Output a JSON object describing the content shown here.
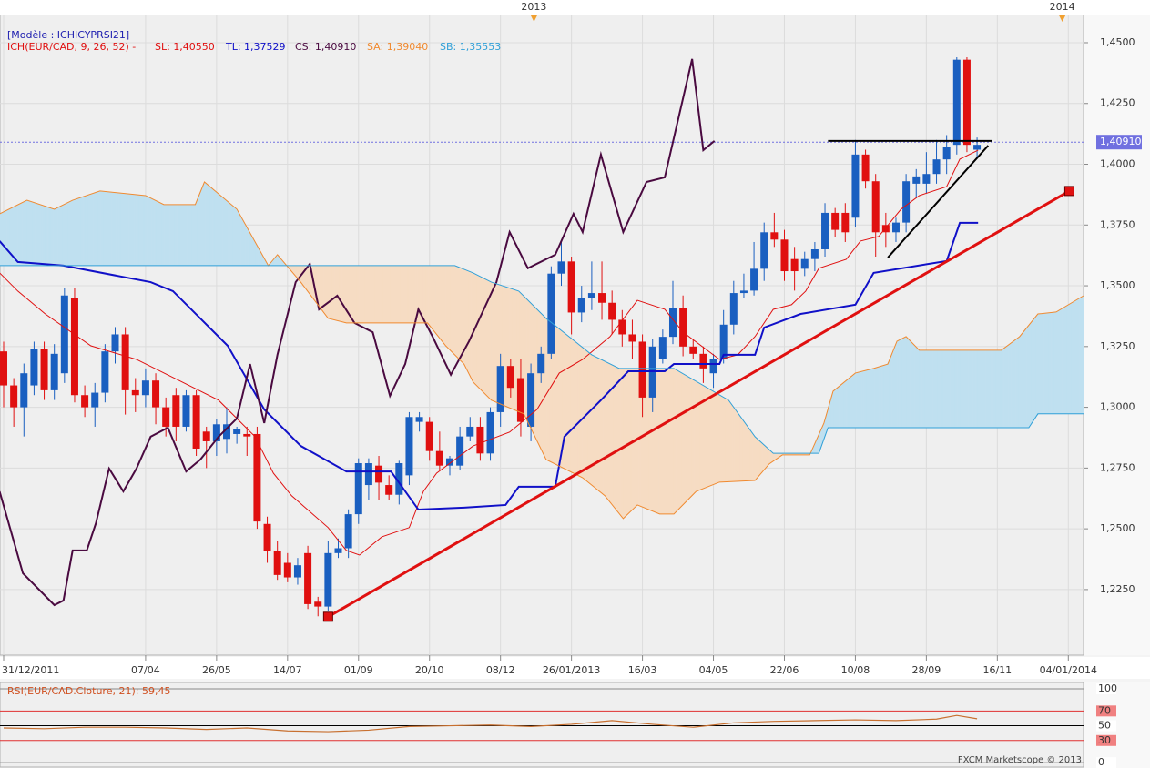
{
  "chart_data": [
    {
      "type": "candlestick",
      "model": "[Modèle : ICHICYPRSI21]",
      "indicator": "ICH(EUR/CAD, 9, 26, 52) -",
      "footer": "FXCM Marketscope © 2013",
      "up_color": "#1a5fc0",
      "down_color": "#e01010",
      "open": [
        1.323,
        1.309,
        1.3,
        1.309,
        1.324,
        1.307,
        1.314,
        1.345,
        1.305,
        1.3,
        1.306,
        1.323,
        1.33,
        1.307,
        1.305,
        1.311,
        1.3,
        1.305,
        1.292,
        1.305,
        1.29,
        1.286,
        1.287,
        1.289,
        1.289,
        1.289,
        1.252,
        1.241,
        1.236,
        1.23,
        1.24,
        1.22,
        1.218,
        1.24,
        1.242,
        1.256,
        1.268,
        1.276,
        1.268,
        1.264,
        1.272,
        1.294,
        1.294,
        1.282,
        1.276,
        1.276,
        1.288,
        1.292,
        1.281,
        1.298,
        1.317,
        1.312,
        1.292,
        1.314,
        1.322,
        1.355,
        1.36,
        1.339,
        1.345,
        1.347,
        1.343,
        1.336,
        1.33,
        1.327,
        1.304,
        1.32,
        1.329,
        1.341,
        1.325,
        1.322,
        1.314,
        1.32,
        1.334,
        1.347,
        1.348,
        1.357,
        1.372,
        1.369,
        1.361,
        1.357,
        1.361,
        1.365,
        1.38,
        1.38,
        1.378,
        1.404,
        1.393,
        1.375,
        1.372,
        1.376,
        1.392,
        1.392,
        1.396,
        1.402,
        1.408,
        1.443,
        1.406
      ],
      "high": [
        1.327,
        1.312,
        1.318,
        1.327,
        1.327,
        1.326,
        1.349,
        1.349,
        1.309,
        1.31,
        1.326,
        1.333,
        1.333,
        1.312,
        1.316,
        1.314,
        1.304,
        1.308,
        1.307,
        1.307,
        1.292,
        1.295,
        1.3,
        1.292,
        1.292,
        1.292,
        1.255,
        1.245,
        1.24,
        1.238,
        1.243,
        1.222,
        1.245,
        1.246,
        1.258,
        1.279,
        1.279,
        1.28,
        1.272,
        1.278,
        1.298,
        1.298,
        1.296,
        1.29,
        1.28,
        1.292,
        1.296,
        1.296,
        1.3,
        1.322,
        1.32,
        1.32,
        1.318,
        1.325,
        1.358,
        1.368,
        1.362,
        1.35,
        1.36,
        1.36,
        1.348,
        1.34,
        1.336,
        1.33,
        1.328,
        1.332,
        1.352,
        1.346,
        1.328,
        1.325,
        1.322,
        1.34,
        1.352,
        1.355,
        1.368,
        1.376,
        1.38,
        1.373,
        1.366,
        1.364,
        1.368,
        1.384,
        1.382,
        1.384,
        1.41,
        1.406,
        1.396,
        1.38,
        1.378,
        1.396,
        1.398,
        1.405,
        1.41,
        1.412,
        1.444,
        1.444,
        1.411
      ],
      "low": [
        1.3,
        1.292,
        1.288,
        1.305,
        1.303,
        1.303,
        1.31,
        1.302,
        1.296,
        1.292,
        1.302,
        1.318,
        1.297,
        1.298,
        1.3,
        1.293,
        1.288,
        1.286,
        1.29,
        1.28,
        1.275,
        1.28,
        1.281,
        1.285,
        1.28,
        1.25,
        1.236,
        1.229,
        1.228,
        1.227,
        1.217,
        1.214,
        1.216,
        1.238,
        1.238,
        1.252,
        1.262,
        1.262,
        1.262,
        1.26,
        1.268,
        1.29,
        1.278,
        1.274,
        1.272,
        1.274,
        1.286,
        1.278,
        1.278,
        1.292,
        1.304,
        1.288,
        1.286,
        1.31,
        1.32,
        1.35,
        1.33,
        1.335,
        1.34,
        1.336,
        1.33,
        1.325,
        1.32,
        1.296,
        1.298,
        1.318,
        1.326,
        1.321,
        1.32,
        1.31,
        1.308,
        1.318,
        1.33,
        1.345,
        1.346,
        1.352,
        1.366,
        1.352,
        1.348,
        1.354,
        1.356,
        1.362,
        1.37,
        1.368,
        1.374,
        1.39,
        1.362,
        1.366,
        1.368,
        1.372,
        1.386,
        1.388,
        1.392,
        1.396,
        1.404,
        1.405,
        1.403
      ],
      "close": [
        1.309,
        1.3,
        1.314,
        1.324,
        1.307,
        1.322,
        1.346,
        1.305,
        1.3,
        1.306,
        1.323,
        1.33,
        1.307,
        1.305,
        1.311,
        1.3,
        1.292,
        1.292,
        1.305,
        1.283,
        1.286,
        1.293,
        1.293,
        1.291,
        1.288,
        1.253,
        1.241,
        1.231,
        1.23,
        1.235,
        1.219,
        1.218,
        1.24,
        1.242,
        1.256,
        1.277,
        1.277,
        1.269,
        1.264,
        1.277,
        1.296,
        1.296,
        1.282,
        1.276,
        1.279,
        1.288,
        1.292,
        1.281,
        1.298,
        1.317,
        1.308,
        1.294,
        1.314,
        1.322,
        1.355,
        1.36,
        1.339,
        1.345,
        1.347,
        1.343,
        1.336,
        1.33,
        1.327,
        1.304,
        1.325,
        1.329,
        1.341,
        1.325,
        1.322,
        1.316,
        1.32,
        1.334,
        1.347,
        1.348,
        1.357,
        1.372,
        1.369,
        1.356,
        1.356,
        1.361,
        1.365,
        1.38,
        1.373,
        1.372,
        1.404,
        1.393,
        1.372,
        1.372,
        1.376,
        1.393,
        1.395,
        1.396,
        1.402,
        1.407,
        1.443,
        1.408,
        1.408
      ],
      "series": [
        {
          "name": "SL: 1,40550",
          "color": "#e01010",
          "width": 1,
          "x": [
            -0.4,
            1.4,
            4.1,
            8.6,
            13.1,
            17.6,
            21.2,
            24.8,
            26.6,
            28.4,
            32.0,
            33.8,
            35.1,
            37.3,
            40.0,
            41.4,
            42.7,
            46.3,
            49.9,
            52.6,
            54.8,
            57.1,
            59.8,
            62.5,
            65.2,
            67.0,
            70.6,
            72.4,
            74.1,
            75.9,
            77.7,
            79.1,
            80.4,
            83.1,
            84.5,
            86.3,
            88.5,
            90.3,
            93.0,
            94.3,
            96.1
          ],
          "values": [
            1.3553,
            1.3478,
            1.3384,
            1.3253,
            1.3197,
            1.3104,
            1.3029,
            1.2879,
            1.2729,
            1.2636,
            1.2505,
            1.2411,
            1.2392,
            1.2467,
            1.2505,
            1.2654,
            1.2729,
            1.2841,
            1.2898,
            1.2991,
            1.3141,
            1.3197,
            1.3291,
            1.344,
            1.3403,
            1.3309,
            1.3197,
            1.3216,
            1.3291,
            1.3403,
            1.3422,
            1.3478,
            1.3572,
            1.3609,
            1.3684,
            1.3703,
            1.3815,
            1.3871,
            1.3908,
            1.4021,
            1.4058
          ]
        },
        {
          "name": "TL: 1,37529",
          "color": "#1010c8",
          "width": 2,
          "x": [
            -0.4,
            1.4,
            5.9,
            14.5,
            16.7,
            22.1,
            25.7,
            29.3,
            33.8,
            38.2,
            40.9,
            45.4,
            49.5,
            50.8,
            54.4,
            55.3,
            58.9,
            61.6,
            65.2,
            66.1,
            70.6,
            71.0,
            74.1,
            75.0,
            78.6,
            84.0,
            85.8,
            93.0,
            94.3,
            96.1
          ],
          "values": [
            1.3684,
            1.3598,
            1.3583,
            1.3515,
            1.3478,
            1.3253,
            1.2991,
            1.2841,
            1.2736,
            1.2736,
            1.2579,
            1.2587,
            1.2598,
            1.2673,
            1.2673,
            1.2879,
            1.3029,
            1.3148,
            1.3148,
            1.3178,
            1.3178,
            1.3216,
            1.3216,
            1.3328,
            1.3384,
            1.3422,
            1.3553,
            1.3602,
            1.3759,
            1.3759
          ]
        },
        {
          "name": "CS: 1,40910",
          "color": "#4a0a40",
          "width": 2,
          "x": [
            -0.4,
            1.9,
            5.0,
            5.9,
            6.8,
            8.2,
            9.1,
            10.4,
            11.8,
            13.1,
            14.5,
            16.2,
            18.0,
            19.4,
            21.2,
            23.0,
            24.3,
            25.7,
            27.0,
            28.8,
            30.2,
            31.1,
            32.9,
            34.6,
            36.4,
            38.1,
            39.6,
            40.9,
            42.3,
            44.1,
            45.9,
            48.6,
            49.9,
            51.7,
            54.4,
            56.2,
            57.1,
            58.9,
            61.1,
            63.4,
            65.2,
            67.9,
            69.0,
            70.1
          ],
          "values": [
            1.2654,
            1.2317,
            1.2186,
            1.2205,
            1.2411,
            1.2411,
            1.2523,
            1.2748,
            1.2654,
            1.2748,
            1.2879,
            1.2916,
            1.2736,
            1.2785,
            1.2879,
            1.2954,
            1.3178,
            1.2935,
            1.3216,
            1.3515,
            1.359,
            1.3403,
            1.3459,
            1.3347,
            1.3309,
            1.3047,
            1.3178,
            1.3403,
            1.3291,
            1.3134,
            1.3272,
            1.3515,
            1.3721,
            1.3572,
            1.3628,
            1.3796,
            1.3721,
            1.404,
            1.3721,
            1.3927,
            1.3946,
            1.4433,
            1.4058,
            1.4096
          ]
        },
        {
          "name": "SA: 1,39040",
          "color": "#f08a30",
          "width": 1,
          "x": [
            -0.4,
            2.3,
            5.0,
            6.8,
            9.5,
            14.0,
            15.8,
            18.9,
            19.8,
            23.0,
            26.1,
            27.0,
            29.3,
            32.0,
            33.8,
            41.8,
            43.6,
            45.4,
            46.3,
            48.1,
            51.3,
            53.5,
            57.1,
            59.3,
            61.1,
            62.5,
            64.7,
            66.1,
            68.3,
            70.6,
            74.1,
            75.5,
            76.8,
            79.5,
            80.9,
            81.8,
            84.0,
            85.8,
            87.2,
            88.1,
            89.0,
            90.3,
            93.9,
            98.4,
            100.2,
            102.0,
            103.8,
            106.5
          ],
          "values": [
            1.3796,
            1.3852,
            1.3815,
            1.3852,
            1.389,
            1.3871,
            1.3834,
            1.3834,
            1.3927,
            1.3815,
            1.3583,
            1.3628,
            1.3515,
            1.3366,
            1.3347,
            1.3347,
            1.3253,
            1.3178,
            1.3104,
            1.3029,
            1.2973,
            1.2785,
            1.271,
            1.2636,
            1.2542,
            1.2598,
            1.2561,
            1.2561,
            1.2654,
            1.2692,
            1.2699,
            1.2767,
            1.2804,
            1.2804,
            1.2935,
            1.3066,
            1.3141,
            1.316,
            1.3178,
            1.3272,
            1.3291,
            1.3235,
            1.3235,
            1.3235,
            1.3291,
            1.3384,
            1.3392,
            1.3459
          ]
        },
        {
          "name": "SB: 1,35553",
          "color": "#30a0d8",
          "width": 1,
          "x": [
            -0.4,
            26.6,
            44.5,
            46.3,
            48.1,
            50.8,
            53.5,
            58.0,
            60.7,
            66.1,
            71.5,
            74.1,
            75.9,
            80.4,
            81.3,
            101.1,
            102.0,
            106.5
          ],
          "values": [
            1.3583,
            1.3583,
            1.3583,
            1.3553,
            1.3515,
            1.3478,
            1.3366,
            1.3216,
            1.316,
            1.316,
            1.3029,
            1.2879,
            1.2811,
            1.2811,
            1.2916,
            1.2916,
            1.2973,
            1.2973
          ]
        }
      ],
      "cloud_colors": [
        "#bfe0f0",
        "#f6dcc3"
      ],
      "trendlines": [
        {
          "color": "#e01010",
          "width": 3,
          "markers": true,
          "x": [
            32.0,
            105.1
          ],
          "values": [
            1.2138,
            1.389
          ]
        },
        {
          "color": "#000000",
          "width": 2,
          "markers": false,
          "x": [
            81.3,
            97.5
          ],
          "values": [
            1.4096,
            1.4096
          ]
        },
        {
          "color": "#000000",
          "width": 2,
          "markers": false,
          "x": [
            87.2,
            97.1
          ],
          "values": [
            1.3616,
            1.4077
          ]
        }
      ],
      "price_line": {
        "value": 1.4091,
        "label": "1,40910",
        "color": "#7070e0"
      },
      "xlim": [
        -0.36,
        106.5
      ],
      "xticks": [
        {
          "value": 0,
          "label": "31/12/2011"
        },
        {
          "value": 14,
          "label": "07/04"
        },
        {
          "value": 21,
          "label": "26/05"
        },
        {
          "value": 28,
          "label": "14/07"
        },
        {
          "value": 35,
          "label": "01/09"
        },
        {
          "value": 42,
          "label": "20/10"
        },
        {
          "value": 49,
          "label": "08/12"
        },
        {
          "value": 56,
          "label": "26/01/2013"
        },
        {
          "value": 63,
          "label": "16/03"
        },
        {
          "value": 70,
          "label": "04/05"
        },
        {
          "value": 77,
          "label": "22/06"
        },
        {
          "value": 84,
          "label": "10/08"
        },
        {
          "value": 91,
          "label": "28/09"
        },
        {
          "value": 98,
          "label": "16/11"
        },
        {
          "value": 105,
          "label": "04/01/2014"
        }
      ],
      "top_ticks": [
        {
          "value": 52.3,
          "label": "2013"
        },
        {
          "value": 104.4,
          "label": "2014"
        }
      ],
      "ylim": [
        1.198,
        1.4616
      ],
      "yticks": [
        {
          "value": 1.225,
          "label": "1,2250"
        },
        {
          "value": 1.25,
          "label": "1,2500"
        },
        {
          "value": 1.275,
          "label": "1,2750"
        },
        {
          "value": 1.3,
          "label": "1,3000"
        },
        {
          "value": 1.325,
          "label": "1,3250"
        },
        {
          "value": 1.35,
          "label": "1,3500"
        },
        {
          "value": 1.375,
          "label": "1,3750"
        },
        {
          "value": 1.4,
          "label": "1,4000"
        },
        {
          "value": 1.425,
          "label": "1,4250"
        },
        {
          "value": 1.45,
          "label": "1,4500"
        }
      ],
      "grid": true
    },
    {
      "type": "line",
      "title": "RSI(EUR/CAD.Cloture, 21): 59,45",
      "color": "#c87030",
      "x": [
        0,
        4,
        8,
        12,
        16,
        20,
        24,
        28,
        32,
        36,
        40,
        44,
        48,
        52,
        56,
        60,
        64,
        68,
        72,
        76,
        80,
        84,
        88,
        92,
        94,
        96
      ],
      "values": [
        47,
        46,
        48,
        48,
        47,
        45,
        47,
        43,
        42,
        44,
        49,
        50,
        51,
        49,
        52,
        57,
        52,
        48,
        54,
        56,
        57,
        58,
        57,
        59,
        64,
        59.45
      ],
      "xlim": [
        -0.36,
        106.5
      ],
      "ylim": [
        -6,
        108.6
      ],
      "yticks": [
        0,
        30,
        50,
        70,
        100
      ],
      "tick_line_colors": [
        "#888888",
        "#e03030",
        "#000000",
        "#e03030",
        "#888888"
      ],
      "tick_box_colors": [
        "#ffffff",
        "#f08080",
        "#ffffff",
        "#f08080",
        "#ffffff"
      ]
    }
  ]
}
